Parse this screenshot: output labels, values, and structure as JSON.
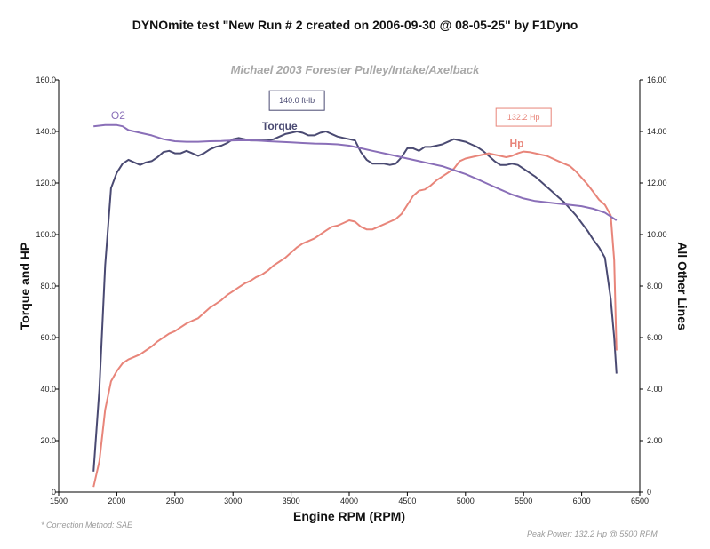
{
  "title": "DYNOmite test \"New Run # 2 created on 2006-09-30 @ 08-05-25\" by F1Dyno",
  "subtitle": "Michael 2003 Forester Pulley/Intake/Axelback",
  "footer": {
    "correction": "* Correction Method: SAE",
    "peak_power": "Peak Power: 132.2 Hp @ 5500 RPM"
  },
  "colors": {
    "torque": "#4a4a72",
    "hp": "#e8857a",
    "o2": "#8a6fb8",
    "axis": "#000000"
  },
  "chart_data": {
    "type": "line",
    "xlabel": "Engine RPM (RPM)",
    "ylabel_left": "Torque and HP",
    "ylabel_right": "All Other Lines",
    "xlim": [
      1500,
      6500
    ],
    "ylim_left": [
      0,
      160
    ],
    "ylim_right": [
      0,
      16
    ],
    "x_ticks": [
      1500,
      2000,
      2500,
      3000,
      3500,
      4000,
      4500,
      5000,
      5500,
      6000,
      6500
    ],
    "y_ticks_left": [
      "0",
      "20.0",
      "40.0",
      "60.0",
      "80.0",
      "100.0",
      "120.0",
      "140.0",
      "160.0"
    ],
    "y_ticks_right": [
      "0",
      "2.00",
      "4.00",
      "6.00",
      "8.00",
      "10.00",
      "12.00",
      "14.00",
      "16.00"
    ],
    "grid": false,
    "series": [
      {
        "name": "Torque",
        "axis": "left",
        "x": [
          1800,
          1850,
          1900,
          1950,
          2000,
          2050,
          2100,
          2150,
          2200,
          2250,
          2300,
          2350,
          2400,
          2450,
          2500,
          2550,
          2600,
          2650,
          2700,
          2750,
          2800,
          2850,
          2900,
          2950,
          3000,
          3050,
          3100,
          3150,
          3200,
          3250,
          3300,
          3350,
          3400,
          3450,
          3500,
          3550,
          3600,
          3650,
          3700,
          3750,
          3800,
          3850,
          3900,
          3950,
          4000,
          4050,
          4100,
          4150,
          4200,
          4250,
          4300,
          4350,
          4400,
          4450,
          4500,
          4550,
          4600,
          4650,
          4700,
          4750,
          4800,
          4850,
          4900,
          4950,
          5000,
          5050,
          5100,
          5150,
          5200,
          5250,
          5300,
          5350,
          5400,
          5450,
          5500,
          5550,
          5600,
          5650,
          5700,
          5750,
          5800,
          5850,
          5900,
          5950,
          6000,
          6050,
          6100,
          6150,
          6200,
          6250,
          6280,
          6300
        ],
        "values": [
          8,
          40,
          88,
          118,
          124,
          127.5,
          129,
          128,
          127,
          128,
          128.5,
          130,
          132,
          132.5,
          131.5,
          131.5,
          132.5,
          131.5,
          130.5,
          131.5,
          133,
          134,
          134.5,
          135.5,
          137,
          137.5,
          137,
          136.5,
          136.5,
          136.5,
          136.5,
          137,
          138,
          139,
          139.5,
          140,
          139.5,
          138.5,
          138.5,
          139.5,
          140,
          139,
          138,
          137.5,
          137,
          136.5,
          132,
          129,
          127.5,
          127.5,
          127.5,
          127,
          127.5,
          130,
          133.5,
          133.5,
          132.5,
          134,
          134,
          134.5,
          135,
          136,
          137,
          136.5,
          136,
          135,
          134,
          132.5,
          130.5,
          128.5,
          127,
          127,
          127.5,
          127,
          125.5,
          124,
          122.5,
          120.5,
          118.5,
          116.5,
          114.5,
          112.5,
          110,
          107.5,
          104.5,
          101.5,
          98,
          95,
          91,
          75,
          60,
          46
        ]
      },
      {
        "name": "Hp",
        "axis": "left",
        "x": [
          1800,
          1850,
          1900,
          1950,
          2000,
          2050,
          2100,
          2150,
          2200,
          2250,
          2300,
          2350,
          2400,
          2450,
          2500,
          2550,
          2600,
          2650,
          2700,
          2750,
          2800,
          2850,
          2900,
          2950,
          3000,
          3050,
          3100,
          3150,
          3200,
          3250,
          3300,
          3350,
          3400,
          3450,
          3500,
          3550,
          3600,
          3650,
          3700,
          3750,
          3800,
          3850,
          3900,
          3950,
          4000,
          4050,
          4100,
          4150,
          4200,
          4250,
          4300,
          4350,
          4400,
          4450,
          4500,
          4550,
          4600,
          4650,
          4700,
          4750,
          4800,
          4850,
          4900,
          4950,
          5000,
          5050,
          5100,
          5150,
          5200,
          5250,
          5300,
          5350,
          5400,
          5450,
          5500,
          5550,
          5600,
          5650,
          5700,
          5750,
          5800,
          5850,
          5900,
          5950,
          6000,
          6050,
          6100,
          6150,
          6200,
          6250,
          6280,
          6300
        ],
        "values": [
          2,
          12,
          32,
          43,
          47,
          50,
          51.5,
          52.5,
          53.5,
          55,
          56.5,
          58.5,
          60,
          61.5,
          62.5,
          64,
          65.5,
          66.5,
          67.5,
          69.5,
          71.5,
          73,
          74.5,
          76.5,
          78,
          79.5,
          81,
          82,
          83.5,
          84.5,
          86,
          88,
          89.5,
          91,
          93,
          95,
          96.5,
          97.5,
          98.5,
          100,
          101.5,
          103,
          103.5,
          104.5,
          105.5,
          105,
          103,
          102,
          102,
          103,
          104,
          105,
          106,
          108,
          111.5,
          115,
          117,
          117.5,
          119,
          121,
          122.5,
          124,
          125.5,
          128.5,
          129.5,
          130,
          130.5,
          131,
          131.5,
          131,
          130.5,
          130,
          130.5,
          131.5,
          132.2,
          132,
          131.5,
          131,
          130.5,
          129.5,
          128.5,
          127.5,
          126.5,
          124.5,
          122,
          119.5,
          116.5,
          113.5,
          111.5,
          107.5,
          90,
          55
        ]
      },
      {
        "name": "O2",
        "axis": "right",
        "x": [
          1800,
          1900,
          2000,
          2050,
          2100,
          2200,
          2300,
          2400,
          2500,
          2600,
          2700,
          2800,
          2900,
          3000,
          3100,
          3200,
          3300,
          3400,
          3500,
          3600,
          3700,
          3800,
          3900,
          4000,
          4100,
          4200,
          4300,
          4400,
          4500,
          4600,
          4700,
          4800,
          4900,
          5000,
          5100,
          5200,
          5300,
          5400,
          5500,
          5600,
          5700,
          5800,
          5900,
          6000,
          6100,
          6200,
          6300
        ],
        "values": [
          14.2,
          14.25,
          14.25,
          14.2,
          14.05,
          13.95,
          13.85,
          13.7,
          13.62,
          13.6,
          13.6,
          13.62,
          13.63,
          13.65,
          13.66,
          13.65,
          13.62,
          13.6,
          13.58,
          13.55,
          13.53,
          13.52,
          13.5,
          13.45,
          13.35,
          13.25,
          13.15,
          13.05,
          12.95,
          12.85,
          12.75,
          12.65,
          12.5,
          12.35,
          12.15,
          11.95,
          11.75,
          11.55,
          11.4,
          11.3,
          11.25,
          11.2,
          11.15,
          11.1,
          11.0,
          10.85,
          10.55
        ]
      }
    ],
    "annotations": [
      {
        "text": "140.0 ft-lb",
        "series": "Torque",
        "boxed": true
      },
      {
        "text": "132.2 Hp",
        "series": "Hp",
        "boxed": true
      }
    ]
  }
}
